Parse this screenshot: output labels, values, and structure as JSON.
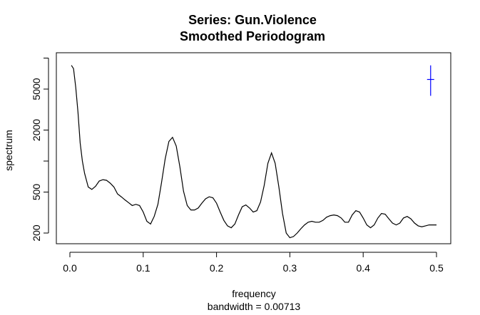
{
  "chart_data": {
    "type": "line",
    "title": "Series: Gun.Violence",
    "subtitle": "Smoothed Periodogram",
    "xlabel": "frequency",
    "xlabel_sub": "bandwidth = 0.00713",
    "ylabel": "spectrum",
    "y_scale": "log",
    "xlim": [
      0,
      0.5
    ],
    "ylim": [
      160,
      10000
    ],
    "x_ticks": [
      0.0,
      0.1,
      0.2,
      0.3,
      0.4,
      0.5
    ],
    "x_tick_labels": [
      "0.0",
      "0.1",
      "0.2",
      "0.3",
      "0.4",
      "0.5"
    ],
    "y_ticks": [
      200,
      500,
      2000,
      5000
    ],
    "y_tick_labels": [
      "200",
      "500",
      "2000",
      "5000"
    ],
    "y_minor_ticks": [
      1000,
      10000
    ],
    "grid": false,
    "series": [
      {
        "color": "#000000",
        "x": [
          0.002,
          0.005,
          0.008,
          0.011,
          0.014,
          0.017,
          0.02,
          0.025,
          0.03,
          0.035,
          0.04,
          0.045,
          0.05,
          0.055,
          0.06,
          0.065,
          0.07,
          0.075,
          0.08,
          0.085,
          0.09,
          0.095,
          0.1,
          0.105,
          0.11,
          0.115,
          0.12,
          0.125,
          0.13,
          0.135,
          0.14,
          0.145,
          0.15,
          0.155,
          0.16,
          0.165,
          0.17,
          0.175,
          0.18,
          0.185,
          0.19,
          0.195,
          0.2,
          0.205,
          0.21,
          0.215,
          0.22,
          0.225,
          0.23,
          0.235,
          0.24,
          0.245,
          0.25,
          0.255,
          0.26,
          0.265,
          0.27,
          0.275,
          0.28,
          0.285,
          0.29,
          0.295,
          0.3,
          0.305,
          0.31,
          0.315,
          0.32,
          0.325,
          0.33,
          0.335,
          0.34,
          0.345,
          0.35,
          0.355,
          0.36,
          0.365,
          0.37,
          0.375,
          0.38,
          0.385,
          0.39,
          0.395,
          0.4,
          0.405,
          0.41,
          0.415,
          0.42,
          0.425,
          0.43,
          0.435,
          0.44,
          0.445,
          0.45,
          0.455,
          0.46,
          0.465,
          0.47,
          0.475,
          0.48,
          0.485,
          0.49,
          0.495,
          0.5
        ],
        "values": [
          8500,
          7900,
          5200,
          3000,
          1500,
          1000,
          760,
          560,
          530,
          570,
          640,
          660,
          650,
          610,
          560,
          480,
          450,
          420,
          395,
          370,
          380,
          370,
          320,
          260,
          245,
          290,
          380,
          620,
          1050,
          1550,
          1700,
          1400,
          880,
          510,
          370,
          335,
          335,
          350,
          390,
          430,
          450,
          440,
          390,
          320,
          265,
          235,
          225,
          245,
          300,
          360,
          375,
          350,
          320,
          330,
          400,
          580,
          950,
          1200,
          950,
          560,
          310,
          200,
          180,
          185,
          200,
          220,
          240,
          255,
          260,
          255,
          255,
          265,
          285,
          295,
          300,
          295,
          280,
          255,
          255,
          300,
          330,
          320,
          280,
          240,
          225,
          240,
          280,
          310,
          305,
          275,
          250,
          240,
          250,
          280,
          290,
          275,
          250,
          235,
          230,
          235,
          240,
          240,
          240
        ]
      }
    ],
    "ci_bar": {
      "color": "#0000ff",
      "x": 0.492,
      "y_center": 6200,
      "y_low": 4300,
      "y_high": 8500
    }
  }
}
